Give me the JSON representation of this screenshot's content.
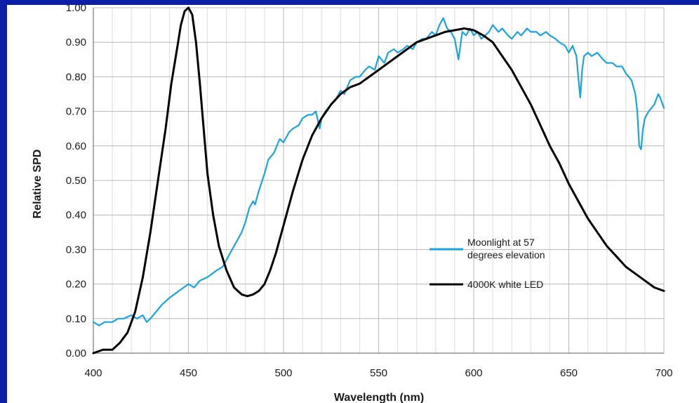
{
  "chart_data": {
    "type": "line",
    "title": "",
    "xlabel": "Wavelength (nm)",
    "ylabel": "Relative SPD",
    "xlim": [
      400,
      700
    ],
    "ylim": [
      0,
      1
    ],
    "x_ticks": [
      "400",
      "450",
      "500",
      "550",
      "600",
      "650",
      "700"
    ],
    "y_ticks": [
      "0.00",
      "0.10",
      "0.20",
      "0.30",
      "0.40",
      "0.50",
      "0.60",
      "0.70",
      "0.80",
      "0.90",
      "1.00"
    ],
    "grid": true,
    "legend_position": "middle-right",
    "series": [
      {
        "name": "Moonlight at 57 degrees elevation",
        "color": "#1aa3e0",
        "x": [
          400,
          403,
          406,
          410,
          413,
          416,
          420,
          423,
          426,
          428,
          430,
          433,
          436,
          440,
          445,
          450,
          453,
          456,
          460,
          465,
          468,
          470,
          473,
          476,
          478,
          480,
          482,
          484,
          485,
          487,
          490,
          492,
          495,
          498,
          500,
          503,
          505,
          508,
          510,
          513,
          515,
          517,
          519,
          520,
          522,
          525,
          527,
          530,
          532,
          535,
          538,
          540,
          543,
          545,
          548,
          550,
          553,
          555,
          558,
          560,
          563,
          565,
          568,
          570,
          573,
          575,
          578,
          580,
          582,
          584,
          586,
          588,
          590,
          592,
          594,
          596,
          598,
          600,
          602,
          604,
          606,
          608,
          610,
          613,
          615,
          618,
          620,
          623,
          625,
          628,
          630,
          633,
          635,
          638,
          640,
          643,
          645,
          648,
          650,
          652,
          654,
          655,
          656,
          657,
          658,
          660,
          662,
          665,
          668,
          670,
          673,
          675,
          678,
          680,
          683,
          685,
          686,
          687,
          688,
          689,
          690,
          692,
          695,
          697,
          698,
          700
        ],
        "values": [
          0.09,
          0.08,
          0.09,
          0.09,
          0.1,
          0.1,
          0.11,
          0.1,
          0.11,
          0.09,
          0.1,
          0.12,
          0.14,
          0.16,
          0.18,
          0.2,
          0.19,
          0.21,
          0.22,
          0.24,
          0.25,
          0.27,
          0.3,
          0.33,
          0.35,
          0.38,
          0.42,
          0.44,
          0.43,
          0.47,
          0.52,
          0.56,
          0.58,
          0.62,
          0.61,
          0.64,
          0.65,
          0.66,
          0.68,
          0.69,
          0.69,
          0.7,
          0.65,
          0.68,
          0.7,
          0.72,
          0.73,
          0.76,
          0.75,
          0.79,
          0.8,
          0.8,
          0.82,
          0.83,
          0.82,
          0.86,
          0.84,
          0.87,
          0.88,
          0.87,
          0.88,
          0.89,
          0.88,
          0.9,
          0.91,
          0.91,
          0.93,
          0.92,
          0.95,
          0.97,
          0.94,
          0.93,
          0.91,
          0.85,
          0.93,
          0.92,
          0.94,
          0.92,
          0.93,
          0.91,
          0.92,
          0.93,
          0.95,
          0.93,
          0.94,
          0.92,
          0.91,
          0.93,
          0.92,
          0.94,
          0.93,
          0.93,
          0.92,
          0.93,
          0.92,
          0.91,
          0.9,
          0.89,
          0.87,
          0.89,
          0.86,
          0.8,
          0.74,
          0.82,
          0.86,
          0.87,
          0.86,
          0.87,
          0.85,
          0.84,
          0.84,
          0.83,
          0.83,
          0.81,
          0.79,
          0.75,
          0.7,
          0.6,
          0.59,
          0.65,
          0.68,
          0.7,
          0.72,
          0.75,
          0.74,
          0.71
        ]
      },
      {
        "name": "4000K white LED",
        "color": "#000000",
        "x": [
          400,
          405,
          410,
          414,
          418,
          422,
          426,
          430,
          434,
          438,
          441,
          444,
          446,
          448,
          450,
          452,
          454,
          456,
          458,
          460,
          463,
          466,
          470,
          474,
          478,
          481,
          484,
          487,
          490,
          493,
          496,
          500,
          505,
          510,
          515,
          520,
          525,
          530,
          535,
          540,
          545,
          550,
          555,
          560,
          565,
          570,
          575,
          580,
          585,
          590,
          595,
          600,
          605,
          610,
          615,
          620,
          625,
          630,
          635,
          640,
          645,
          650,
          655,
          660,
          665,
          670,
          675,
          680,
          685,
          690,
          695,
          700
        ],
        "values": [
          0.0,
          0.01,
          0.01,
          0.03,
          0.06,
          0.12,
          0.22,
          0.35,
          0.5,
          0.65,
          0.78,
          0.88,
          0.95,
          0.99,
          1.0,
          0.98,
          0.9,
          0.78,
          0.65,
          0.52,
          0.4,
          0.31,
          0.24,
          0.19,
          0.17,
          0.165,
          0.17,
          0.18,
          0.2,
          0.24,
          0.29,
          0.37,
          0.47,
          0.56,
          0.63,
          0.68,
          0.72,
          0.75,
          0.77,
          0.78,
          0.8,
          0.82,
          0.84,
          0.86,
          0.88,
          0.9,
          0.91,
          0.92,
          0.93,
          0.935,
          0.94,
          0.935,
          0.92,
          0.9,
          0.86,
          0.82,
          0.77,
          0.72,
          0.66,
          0.6,
          0.55,
          0.49,
          0.44,
          0.39,
          0.35,
          0.31,
          0.28,
          0.25,
          0.23,
          0.21,
          0.19,
          0.18
        ]
      }
    ]
  },
  "legend": [
    {
      "line1": "Moonlight at 57",
      "line2": "degrees elevation"
    },
    {
      "line1": "4000K white LED",
      "line2": ""
    }
  ]
}
